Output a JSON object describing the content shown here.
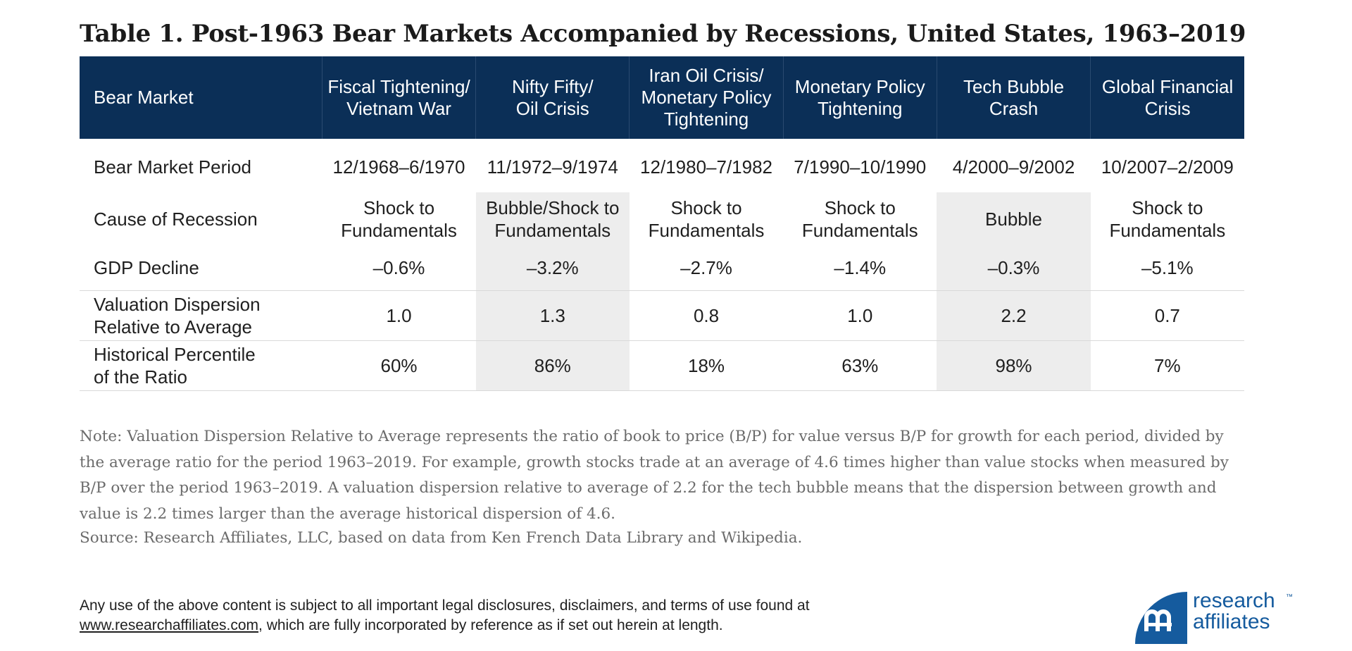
{
  "title": "Table 1. Post-1963 Bear Markets Accompanied by Recessions, United States, 1963–2019",
  "table": {
    "corner": "Bear Market",
    "columns": [
      {
        "l1": "Fiscal Tightening/",
        "l2": "Vietnam War",
        "l3": ""
      },
      {
        "l1": "Nifty Fifty/",
        "l2": "Oil Crisis",
        "l3": ""
      },
      {
        "l1": "Iran Oil Crisis/",
        "l2": "Monetary Policy",
        "l3": "Tightening"
      },
      {
        "l1": "Monetary Policy",
        "l2": "Tightening",
        "l3": ""
      },
      {
        "l1": "Tech Bubble",
        "l2": "Crash",
        "l3": ""
      },
      {
        "l1": "Global Financial",
        "l2": "Crisis",
        "l3": ""
      }
    ],
    "rows": {
      "period": {
        "label": "Bear Market Period",
        "values": [
          "12/1968–6/1970",
          "11/1972–9/1974",
          "12/1980–7/1982",
          "7/1990–10/1990",
          "4/2000–9/2002",
          "10/2007–2/2009"
        ]
      },
      "cause": {
        "label": "Cause of Recession",
        "values": [
          {
            "l1": "Shock to",
            "l2": "Fundamentals"
          },
          {
            "l1": "Bubble/Shock to",
            "l2": "Fundamentals"
          },
          {
            "l1": "Shock to",
            "l2": "Fundamentals"
          },
          {
            "l1": "Shock to",
            "l2": "Fundamentals"
          },
          {
            "l1": "Bubble",
            "l2": ""
          },
          {
            "l1": "Shock to",
            "l2": "Fundamentals"
          }
        ]
      },
      "gdp": {
        "label": "GDP Decline",
        "values": [
          "–0.6%",
          "–3.2%",
          "–2.7%",
          "–1.4%",
          "–0.3%",
          "–5.1%"
        ]
      },
      "valuation": {
        "label_l1": "Valuation Dispersion",
        "label_l2": "Relative to Average",
        "values": [
          "1.0",
          "1.3",
          "0.8",
          "1.0",
          "2.2",
          "0.7"
        ]
      },
      "historical": {
        "label_l1": "Historical Percentile",
        "label_l2": "of the Ratio",
        "values": [
          "60%",
          "86%",
          "18%",
          "63%",
          "98%",
          "7%"
        ]
      }
    }
  },
  "note": "Note: Valuation Dispersion Relative to Average represents the ratio of book to price (B/P) for value versus B/P for growth for each period, divided by the average ratio for the period 1963–2019. For example, growth stocks trade at an average of 4.6 times higher than value stocks when measured by B/P over the period 1963–2019. A valuation dispersion relative to average of 2.2 for the tech bubble means that the dispersion between growth and value is 2.2 times larger than the average historical dispersion of 4.6.",
  "source": "Source: Research Affiliates, LLC, based on data from Ken French Data Library and Wikipedia.",
  "legal": {
    "line1": "Any use of the above content is subject to all important legal disclosures, disclaimers, and terms of use found at",
    "link": "www.researchaffiliates.com",
    "line2_rest": ", which are fully incorporated by reference as if set out herein at length."
  },
  "logo": {
    "line1": "research",
    "line2": "affiliates",
    "tm": "™",
    "brand_color": "#155b9e"
  },
  "colors": {
    "header_bg": "#0b2f57",
    "shade": "#ededed"
  }
}
